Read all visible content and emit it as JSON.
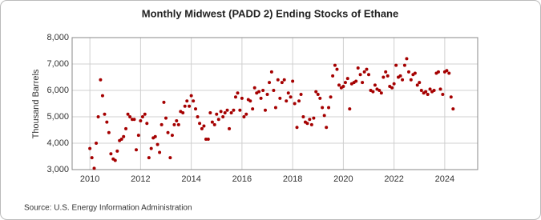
{
  "chart_data": {
    "type": "scatter",
    "title": "Monthly Midwest (PADD 2) Ending Stocks of Ethane",
    "y_label": "Thousand Barrels",
    "source": "Source: U.S. Energy Information Administration",
    "color": "#a50000",
    "grid": true,
    "xlim": [
      2009.3,
      2025.3
    ],
    "xticks": [
      2010,
      2012,
      2014,
      2016,
      2018,
      2020,
      2022,
      2024
    ],
    "ylim": [
      3000,
      8000
    ],
    "yticks": [
      {
        "value": 3000,
        "label": "3,000"
      },
      {
        "value": 4000,
        "label": "4,000"
      },
      {
        "value": 5000,
        "label": "5,000"
      },
      {
        "value": 6000,
        "label": "6,000"
      },
      {
        "value": 7000,
        "label": "7,000"
      },
      {
        "value": 8000,
        "label": "8,000"
      }
    ],
    "x": [
      2010.0,
      2010.08,
      2010.17,
      2010.25,
      2010.33,
      2010.42,
      2010.5,
      2010.58,
      2010.67,
      2010.75,
      2010.83,
      2010.92,
      2011.0,
      2011.08,
      2011.17,
      2011.25,
      2011.33,
      2011.42,
      2011.5,
      2011.58,
      2011.67,
      2011.75,
      2011.83,
      2011.92,
      2012.0,
      2012.08,
      2012.17,
      2012.25,
      2012.33,
      2012.42,
      2012.5,
      2012.58,
      2012.67,
      2012.75,
      2012.83,
      2012.92,
      2013.0,
      2013.08,
      2013.17,
      2013.25,
      2013.33,
      2013.42,
      2013.5,
      2013.58,
      2013.67,
      2013.75,
      2013.83,
      2013.92,
      2014.0,
      2014.08,
      2014.17,
      2014.25,
      2014.33,
      2014.42,
      2014.5,
      2014.58,
      2014.67,
      2014.75,
      2014.83,
      2014.92,
      2015.0,
      2015.08,
      2015.17,
      2015.25,
      2015.33,
      2015.42,
      2015.5,
      2015.58,
      2015.67,
      2015.75,
      2015.83,
      2015.92,
      2016.0,
      2016.08,
      2016.17,
      2016.25,
      2016.33,
      2016.42,
      2016.5,
      2016.58,
      2016.67,
      2016.75,
      2016.83,
      2016.92,
      2017.0,
      2017.08,
      2017.17,
      2017.25,
      2017.33,
      2017.42,
      2017.5,
      2017.58,
      2017.67,
      2017.75,
      2017.83,
      2017.92,
      2018.0,
      2018.08,
      2018.17,
      2018.25,
      2018.33,
      2018.42,
      2018.5,
      2018.58,
      2018.67,
      2018.75,
      2018.83,
      2018.92,
      2019.0,
      2019.08,
      2019.17,
      2019.25,
      2019.33,
      2019.42,
      2019.5,
      2019.58,
      2019.67,
      2019.75,
      2019.83,
      2019.92,
      2020.0,
      2020.08,
      2020.17,
      2020.25,
      2020.33,
      2020.42,
      2020.5,
      2020.58,
      2020.67,
      2020.75,
      2020.83,
      2020.92,
      2021.0,
      2021.08,
      2021.17,
      2021.25,
      2021.33,
      2021.42,
      2021.5,
      2021.58,
      2021.67,
      2021.75,
      2021.83,
      2021.92,
      2022.0,
      2022.08,
      2022.17,
      2022.25,
      2022.33,
      2022.42,
      2022.5,
      2022.58,
      2022.67,
      2022.75,
      2022.83,
      2022.92,
      2023.0,
      2023.08,
      2023.17,
      2023.25,
      2023.33,
      2023.42,
      2023.5,
      2023.58,
      2023.67,
      2023.75,
      2023.83,
      2023.92,
      2024.0,
      2024.08,
      2024.17,
      2024.25,
      2024.33
    ],
    "values": [
      3800,
      3450,
      3050,
      4000,
      5000,
      6400,
      5800,
      5100,
      4800,
      4400,
      3600,
      3400,
      3350,
      3700,
      4100,
      4150,
      4250,
      4550,
      5100,
      5000,
      4900,
      4900,
      3750,
      4300,
      4850,
      5000,
      5100,
      4750,
      3450,
      3800,
      4200,
      4250,
      3950,
      3650,
      4700,
      5550,
      4950,
      4400,
      3450,
      4300,
      4700,
      4850,
      4700,
      5200,
      5150,
      5400,
      5600,
      5400,
      5800,
      5600,
      5300,
      5000,
      4750,
      4550,
      4650,
      4150,
      4150,
      5150,
      4800,
      4700,
      5100,
      4900,
      5200,
      5000,
      5150,
      5250,
      4550,
      5150,
      5250,
      5750,
      5900,
      5250,
      5700,
      5000,
      5100,
      5650,
      5600,
      5300,
      6100,
      5900,
      5950,
      5700,
      6000,
      5250,
      5850,
      6300,
      6700,
      6000,
      5350,
      6400,
      5700,
      6300,
      6400,
      5600,
      5900,
      5750,
      6350,
      5500,
      4600,
      5600,
      5850,
      5000,
      4800,
      4750,
      4900,
      4700,
      4950,
      5950,
      5850,
      5700,
      5350,
      5050,
      4600,
      5350,
      5750,
      6550,
      6950,
      6800,
      6200,
      6100,
      6150,
      6300,
      6450,
      5300,
      6250,
      6300,
      6350,
      6850,
      6600,
      6300,
      6700,
      6800,
      6600,
      6000,
      5950,
      6200,
      6050,
      6000,
      5900,
      6500,
      6700,
      6550,
      6150,
      6100,
      6250,
      6950,
      6500,
      6550,
      6400,
      6950,
      7200,
      6700,
      6400,
      6600,
      6650,
      6200,
      6300,
      6000,
      5900,
      5950,
      5850,
      6050,
      5950,
      6000,
      6650,
      6700,
      6050,
      5850,
      6700,
      6750,
      6650,
      5750,
      5300
    ]
  }
}
